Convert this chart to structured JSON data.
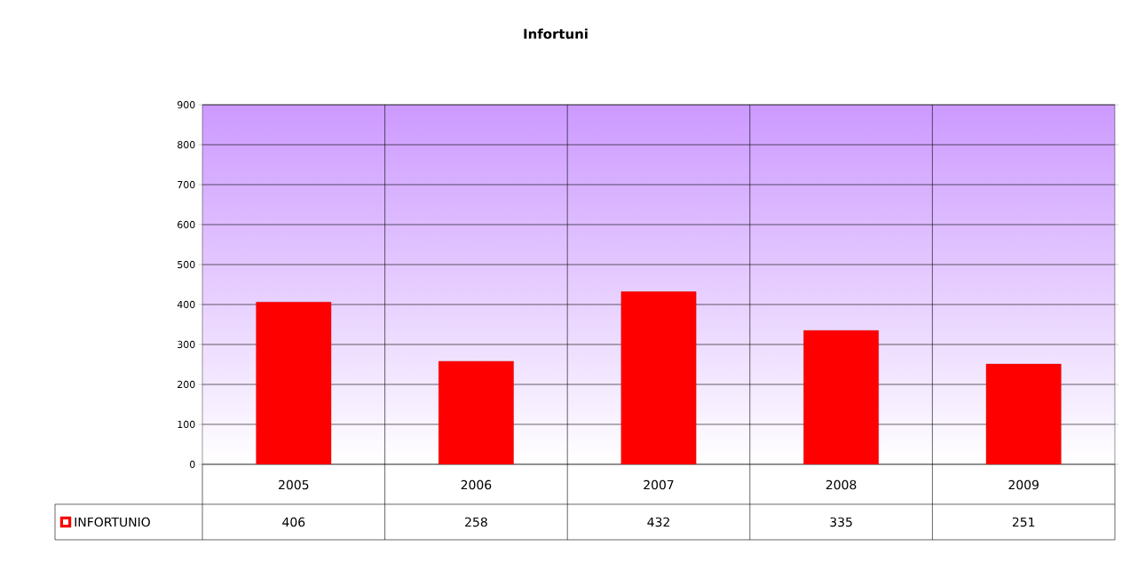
{
  "chart_data": {
    "type": "bar",
    "title": "Infortuni",
    "categories": [
      "2005",
      "2006",
      "2007",
      "2008",
      "2009"
    ],
    "series": [
      {
        "name": "INFORTUNIO",
        "color": "#ff0000",
        "values": [
          406,
          258,
          432,
          335,
          251
        ]
      }
    ],
    "ylim": [
      0,
      900
    ],
    "yticks": [
      0,
      100,
      200,
      300,
      400,
      500,
      600,
      700,
      800,
      900
    ],
    "grid": true,
    "legend": "bottom left",
    "data_labels": true
  }
}
